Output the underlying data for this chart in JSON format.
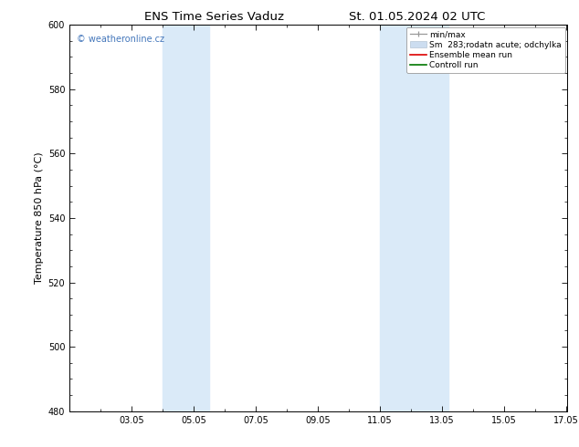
{
  "title": "ENS Time Series Vaduz",
  "title2": "St. 01.05.2024 02 UTC",
  "ylabel": "Temperature 850 hPa (°C)",
  "ylim": [
    480,
    600
  ],
  "yticks": [
    480,
    500,
    520,
    540,
    560,
    580,
    600
  ],
  "x_min": 1.0,
  "x_max": 17.05,
  "xtick_labels": [
    "03.05",
    "05.05",
    "07.05",
    "09.05",
    "11.05",
    "13.05",
    "15.05",
    "17.05"
  ],
  "xtick_days": [
    3,
    5,
    7,
    9,
    11,
    13,
    15,
    17
  ],
  "shaded_bands": [
    {
      "x_start_day": 4.0,
      "x_end_day": 5.5
    },
    {
      "x_start_day": 11.0,
      "x_end_day": 13.2
    }
  ],
  "shade_color": "#daeaf8",
  "watermark_text": "© weatheronline.cz",
  "watermark_color": "#4477bb",
  "legend_entries": [
    {
      "label": "min/max",
      "color": "#aaaaaa",
      "lw": 1.0
    },
    {
      "label": "Sm  283;rodatn acute; odchylka",
      "color": "#ccddf0",
      "lw": 5
    },
    {
      "label": "Ensemble mean run",
      "color": "#dd0000",
      "lw": 1.2
    },
    {
      "label": "Controll run",
      "color": "#007700",
      "lw": 1.2
    }
  ],
  "spine_color": "#000000",
  "tick_color": "#000000",
  "background_color": "#ffffff",
  "plot_bg_color": "#ffffff",
  "title_fontsize": 9.5,
  "label_fontsize": 8,
  "tick_fontsize": 7,
  "legend_fontsize": 6.5,
  "watermark_fontsize": 7
}
